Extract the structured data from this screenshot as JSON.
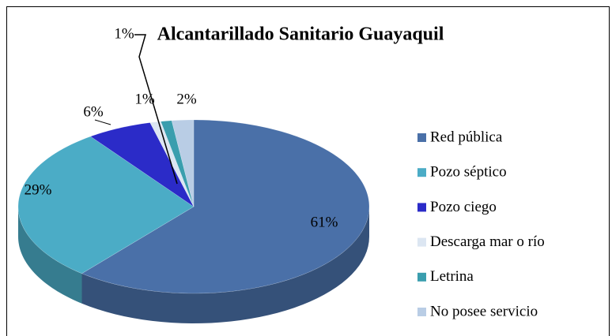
{
  "chart_data": {
    "type": "pie",
    "title": "Alcantarillado Sanitario Guayaquil",
    "categories": [
      "Red pública",
      "Pozo séptico",
      "Pozo ciego",
      "Descarga mar o río",
      "Letrina",
      "No posee servicio"
    ],
    "values": [
      61,
      29,
      6,
      1,
      1,
      2
    ],
    "value_labels": [
      "61%",
      "29%",
      "6%",
      "1%",
      "1%",
      "2%"
    ],
    "colors": [
      "#4a70a8",
      "#4bacc6",
      "#2b2bc8",
      "#dce6f2",
      "#3a9eae",
      "#b9cde5"
    ],
    "legend": "right"
  }
}
